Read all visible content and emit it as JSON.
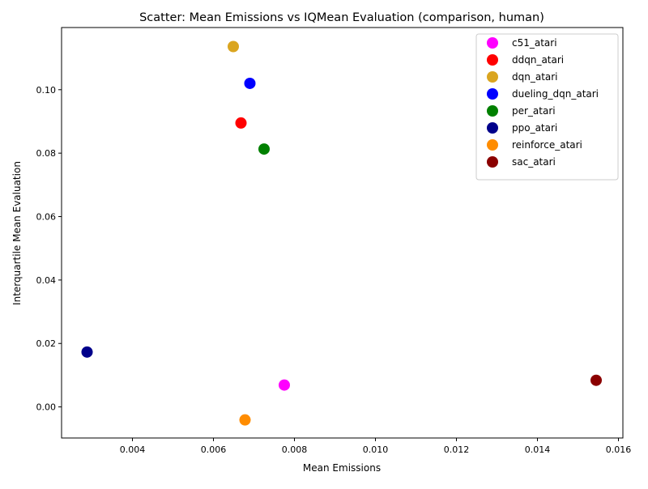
{
  "chart_data": {
    "type": "scatter",
    "title": "Scatter: Mean Emissions vs IQMean Evaluation (comparison, human)",
    "xlabel": "Mean Emissions",
    "ylabel": "Interquartile Mean Evaluation",
    "xlim": [
      0.00225,
      0.01611
    ],
    "ylim": [
      -0.0098,
      0.1196
    ],
    "xticks": [
      0.004,
      0.006,
      0.008,
      0.01,
      0.012,
      0.014,
      0.016
    ],
    "xtick_labels": [
      "0.004",
      "0.006",
      "0.008",
      "0.010",
      "0.012",
      "0.014",
      "0.016"
    ],
    "yticks": [
      0.0,
      0.02,
      0.04,
      0.06,
      0.08,
      0.1
    ],
    "ytick_labels": [
      "0.00",
      "0.02",
      "0.04",
      "0.06",
      "0.08",
      "0.10"
    ],
    "grid": false,
    "legend_position": "top-right",
    "series": [
      {
        "name": "c51_atari",
        "color": "#ff00ff",
        "x": 0.00775,
        "y": 0.0069
      },
      {
        "name": "ddqn_atari",
        "color": "#ff0000",
        "x": 0.00668,
        "y": 0.0895
      },
      {
        "name": "dqn_atari",
        "color": "#daa520",
        "x": 0.00649,
        "y": 0.1136
      },
      {
        "name": "dueling_dqn_atari",
        "color": "#0000ff",
        "x": 0.0069,
        "y": 0.102
      },
      {
        "name": "per_atari",
        "color": "#008000",
        "x": 0.00725,
        "y": 0.0813
      },
      {
        "name": "ppo_atari",
        "color": "#00008b",
        "x": 0.00288,
        "y": 0.0173
      },
      {
        "name": "reinforce_atari",
        "color": "#ff8c00",
        "x": 0.00678,
        "y": -0.0041
      },
      {
        "name": "sac_atari",
        "color": "#8b0000",
        "x": 0.01545,
        "y": 0.0084
      }
    ]
  }
}
